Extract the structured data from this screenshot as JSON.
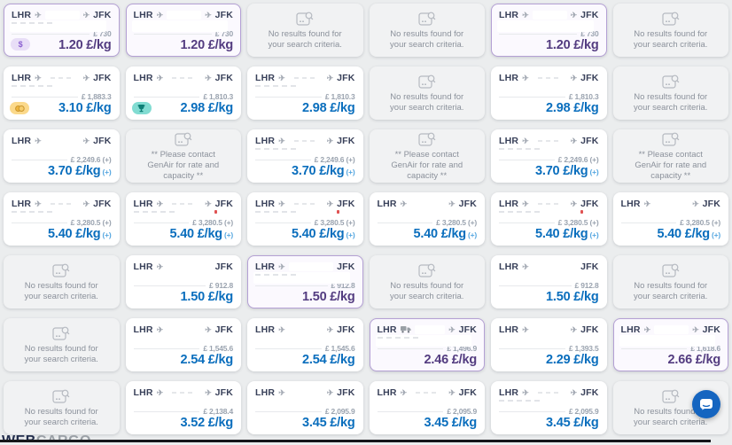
{
  "messages": {
    "no_results": "No results found for your search criteria.",
    "contact": "** Please contact GenAir for rate and capacity **"
  },
  "labels": {
    "origin": "LHR",
    "destination": "JFK",
    "unit": "£/kg",
    "plus": "(+)",
    "currency_prefix": "£"
  },
  "colors": {
    "rate_blue": "#0a6ebd",
    "rate_purple": "#533c80",
    "selected_border": "#b4a0d4",
    "empty_bg": "#f1f2f3",
    "badge_dollar_bg": "#e8def7",
    "badge_coins_bg": "#fbd98b",
    "badge_trophy_bg": "#82dcd2",
    "chat_blue": "#1565c0"
  },
  "logo": {
    "part1": "WEB",
    "part2": "CARGO"
  },
  "cards": [
    {
      "type": "rate",
      "total": "£ 730",
      "rate": "1.20",
      "plus": false,
      "selected": true,
      "badge": "dollar",
      "stops": 2,
      "mid": "box",
      "smudge": true,
      "red": false
    },
    {
      "type": "rate",
      "total": "£ 730",
      "rate": "1.20",
      "plus": false,
      "selected": true,
      "badge": null,
      "stops": 2,
      "mid": "box",
      "smudge": false,
      "red": false
    },
    {
      "type": "empty"
    },
    {
      "type": "empty"
    },
    {
      "type": "rate",
      "total": "£ 730",
      "rate": "1.20",
      "plus": false,
      "selected": true,
      "badge": null,
      "stops": 2,
      "mid": "box",
      "smudge": false,
      "red": false
    },
    {
      "type": "empty"
    },
    {
      "type": "rate",
      "total": "£ 1,883.3",
      "rate": "3.10",
      "plus": false,
      "selected": false,
      "badge": "coins",
      "stops": 2,
      "mid": "faint",
      "smudge": true,
      "red": false
    },
    {
      "type": "rate",
      "total": "£ 1,810.3",
      "rate": "2.98",
      "plus": false,
      "selected": false,
      "badge": "trophy",
      "stops": 2,
      "mid": "faint",
      "smudge": false,
      "red": false
    },
    {
      "type": "rate",
      "total": "£ 1,810.3",
      "rate": "2.98",
      "plus": false,
      "selected": false,
      "badge": null,
      "stops": 2,
      "mid": "faint",
      "smudge": true,
      "red": false
    },
    {
      "type": "empty"
    },
    {
      "type": "rate",
      "total": "£ 1,810.3",
      "rate": "2.98",
      "plus": false,
      "selected": false,
      "badge": null,
      "stops": 2,
      "mid": "faint",
      "smudge": false,
      "red": false
    },
    {
      "type": "empty"
    },
    {
      "type": "rate",
      "total": "£ 2,249.6",
      "rate": "3.70",
      "plus": true,
      "selected": false,
      "badge": null,
      "stops": 2,
      "mid": "none",
      "smudge": false,
      "red": false
    },
    {
      "type": "contact"
    },
    {
      "type": "rate",
      "total": "£ 2,249.6",
      "rate": "3.70",
      "plus": true,
      "selected": false,
      "badge": null,
      "stops": 2,
      "mid": "faint",
      "smudge": true,
      "red": false
    },
    {
      "type": "contact"
    },
    {
      "type": "rate",
      "total": "£ 2,249.6",
      "rate": "3.70",
      "plus": true,
      "selected": false,
      "badge": null,
      "stops": 2,
      "mid": "faint",
      "smudge": true,
      "red": false
    },
    {
      "type": "contact"
    },
    {
      "type": "rate",
      "total": "£ 3,280.5",
      "rate": "5.40",
      "plus": true,
      "selected": false,
      "badge": null,
      "stops": 2,
      "mid": "faint",
      "smudge": true,
      "red": false
    },
    {
      "type": "rate",
      "total": "£ 3,280.5",
      "rate": "5.40",
      "plus": true,
      "selected": false,
      "badge": null,
      "stops": 2,
      "mid": "faint",
      "smudge": true,
      "red": true
    },
    {
      "type": "rate",
      "total": "£ 3,280.5",
      "rate": "5.40",
      "plus": true,
      "selected": false,
      "badge": null,
      "stops": 2,
      "mid": "faint",
      "smudge": true,
      "red": true
    },
    {
      "type": "rate",
      "total": "£ 3,280.5",
      "rate": "5.40",
      "plus": true,
      "selected": false,
      "badge": null,
      "stops": 2,
      "mid": "none",
      "smudge": false,
      "red": false
    },
    {
      "type": "rate",
      "total": "£ 3,280.5",
      "rate": "5.40",
      "plus": true,
      "selected": false,
      "badge": null,
      "stops": 2,
      "mid": "faint",
      "smudge": true,
      "red": true
    },
    {
      "type": "rate",
      "total": "£ 3,280.5",
      "rate": "5.40",
      "plus": true,
      "selected": false,
      "badge": null,
      "stops": 2,
      "mid": "none",
      "smudge": false,
      "red": false
    },
    {
      "type": "empty"
    },
    {
      "type": "rate",
      "total": "£ 912.8",
      "rate": "1.50",
      "plus": false,
      "selected": false,
      "badge": null,
      "stops": 1,
      "mid": "none",
      "smudge": false,
      "red": false
    },
    {
      "type": "rate",
      "total": "£ 912.8",
      "rate": "1.50",
      "plus": false,
      "selected": true,
      "badge": null,
      "stops": 1,
      "mid": "box",
      "smudge": true,
      "red": false
    },
    {
      "type": "empty"
    },
    {
      "type": "rate",
      "total": "£ 912.8",
      "rate": "1.50",
      "plus": false,
      "selected": false,
      "badge": null,
      "stops": 1,
      "mid": "none",
      "smudge": false,
      "red": false
    },
    {
      "type": "empty"
    },
    {
      "type": "empty"
    },
    {
      "type": "rate",
      "total": "£ 1,545.6",
      "rate": "2.54",
      "plus": false,
      "selected": false,
      "badge": null,
      "stops": 2,
      "mid": "none",
      "smudge": false,
      "red": false
    },
    {
      "type": "rate",
      "total": "£ 1,545.6",
      "rate": "2.54",
      "plus": false,
      "selected": false,
      "badge": null,
      "stops": 2,
      "mid": "none",
      "smudge": false,
      "red": false
    },
    {
      "type": "rate",
      "total": "£ 1,496.9",
      "rate": "2.46",
      "plus": false,
      "selected": true,
      "badge": null,
      "stops": 2,
      "mid": "box",
      "smudge": true,
      "red": false,
      "truck": true
    },
    {
      "type": "rate",
      "total": "£ 1,393.5",
      "rate": "2.29",
      "plus": false,
      "selected": false,
      "badge": null,
      "stops": 2,
      "mid": "none",
      "smudge": false,
      "red": false
    },
    {
      "type": "rate",
      "total": "£ 1,618.6",
      "rate": "2.66",
      "plus": false,
      "selected": true,
      "badge": null,
      "stops": 2,
      "mid": "box",
      "smudge": false,
      "red": false
    },
    {
      "type": "empty"
    },
    {
      "type": "rate",
      "total": "£ 2,138.4",
      "rate": "3.52",
      "plus": false,
      "selected": false,
      "badge": null,
      "stops": 2,
      "mid": "faint",
      "smudge": false,
      "red": false
    },
    {
      "type": "rate",
      "total": "£ 2,095.9",
      "rate": "3.45",
      "plus": false,
      "selected": false,
      "badge": null,
      "stops": 2,
      "mid": "none",
      "smudge": false,
      "red": false
    },
    {
      "type": "rate",
      "total": "£ 2,095.9",
      "rate": "3.45",
      "plus": false,
      "selected": false,
      "badge": null,
      "stops": 2,
      "mid": "faint",
      "smudge": false,
      "red": false
    },
    {
      "type": "rate",
      "total": "£ 2,095.9",
      "rate": "3.45",
      "plus": false,
      "selected": false,
      "badge": null,
      "stops": 2,
      "mid": "faint",
      "smudge": true,
      "red": false
    },
    {
      "type": "empty"
    }
  ]
}
